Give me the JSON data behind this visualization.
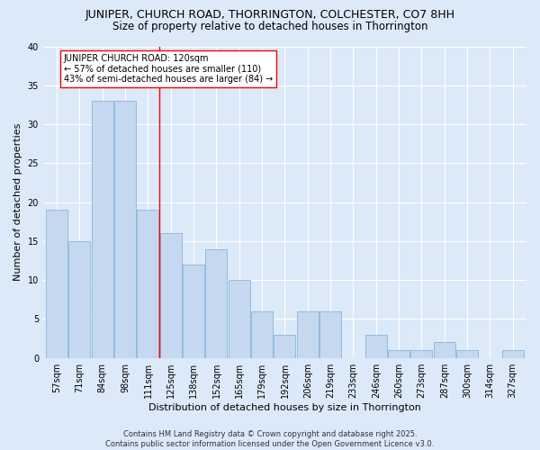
{
  "title": "JUNIPER, CHURCH ROAD, THORRINGTON, COLCHESTER, CO7 8HH",
  "subtitle": "Size of property relative to detached houses in Thorrington",
  "xlabel": "Distribution of detached houses by size in Thorrington",
  "ylabel": "Number of detached properties",
  "categories": [
    "57sqm",
    "71sqm",
    "84sqm",
    "98sqm",
    "111sqm",
    "125sqm",
    "138sqm",
    "152sqm",
    "165sqm",
    "179sqm",
    "192sqm",
    "206sqm",
    "219sqm",
    "233sqm",
    "246sqm",
    "260sqm",
    "273sqm",
    "287sqm",
    "300sqm",
    "314sqm",
    "327sqm"
  ],
  "values": [
    19,
    15,
    33,
    33,
    19,
    16,
    12,
    14,
    10,
    6,
    3,
    6,
    6,
    0,
    3,
    1,
    1,
    2,
    1,
    0,
    1
  ],
  "bar_color": "#c5d8f0",
  "bar_edge_color": "#7aadd4",
  "background_color": "#dce9f8",
  "fig_background_color": "#dce9f8",
  "grid_color": "#ffffff",
  "vline_x": 4.5,
  "vline_color": "red",
  "annotation_text": "JUNIPER CHURCH ROAD: 120sqm\n← 57% of detached houses are smaller (110)\n43% of semi-detached houses are larger (84) →",
  "ylim": [
    0,
    40
  ],
  "yticks": [
    0,
    5,
    10,
    15,
    20,
    25,
    30,
    35,
    40
  ],
  "footnote": "Contains HM Land Registry data © Crown copyright and database right 2025.\nContains public sector information licensed under the Open Government Licence v3.0.",
  "title_fontsize": 9,
  "subtitle_fontsize": 8.5,
  "xlabel_fontsize": 8,
  "ylabel_fontsize": 8,
  "tick_fontsize": 7,
  "footnote_fontsize": 6,
  "annotation_fontsize": 7
}
